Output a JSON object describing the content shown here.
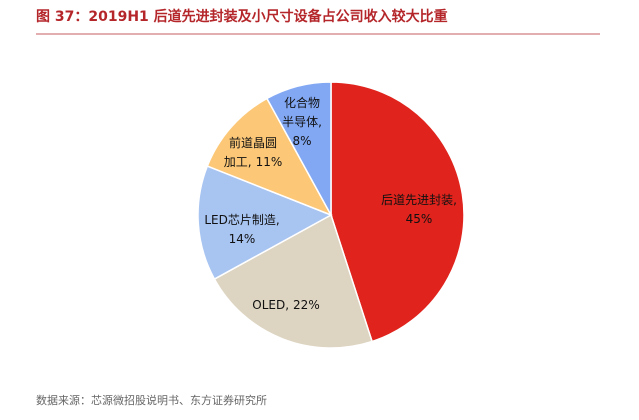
{
  "chart_data": {
    "type": "pie",
    "title": "图 37：2019H1 后道先进封装及小尺寸设备占公司收入较大比重",
    "source": "数据来源：芯源微招股说明书、东方证券研究所",
    "categories": [
      "后道先进封装,",
      "OLED,",
      "LED芯片制造,",
      "前道晶圆加工,",
      "化合物半导体,"
    ],
    "values": [
      45,
      22,
      14,
      11,
      8
    ],
    "value_labels": [
      "45%",
      "22%",
      "14%",
      "11%",
      "8%"
    ],
    "colors": [
      "#e0231c",
      "#ddd4c1",
      "#a8c4f1",
      "#fcc878",
      "#82a8f4"
    ]
  }
}
